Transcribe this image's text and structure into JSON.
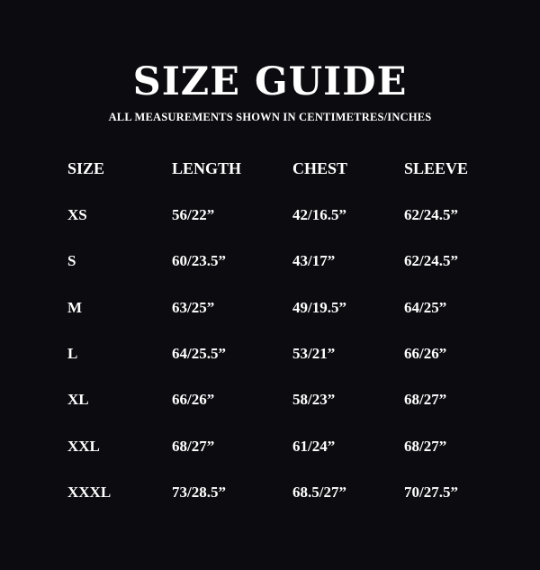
{
  "title": "SIZE GUIDE",
  "subtitle": "ALL MEASUREMENTS SHOWN IN CENTIMETRES/INCHES",
  "columns": [
    "SIZE",
    "LENGTH",
    "CHEST",
    "SLEEVE"
  ],
  "rows": [
    [
      "XS",
      "56/22”",
      "42/16.5”",
      "62/24.5”"
    ],
    [
      "S",
      "60/23.5”",
      "43/17”",
      "62/24.5”"
    ],
    [
      "M",
      "63/25”",
      "49/19.5”",
      "64/25”"
    ],
    [
      "L",
      "64/25.5”",
      "53/21”",
      "66/26”"
    ],
    [
      "XL",
      "66/26”",
      "58/23”",
      "68/27”"
    ],
    [
      "XXL",
      "68/27”",
      "61/24”",
      "68/27”"
    ],
    [
      "XXXL",
      "73/28.5”",
      "68.5/27”",
      "70/27.5”"
    ]
  ],
  "colors": {
    "background": "#0b0b10",
    "text": "#ffffff"
  }
}
